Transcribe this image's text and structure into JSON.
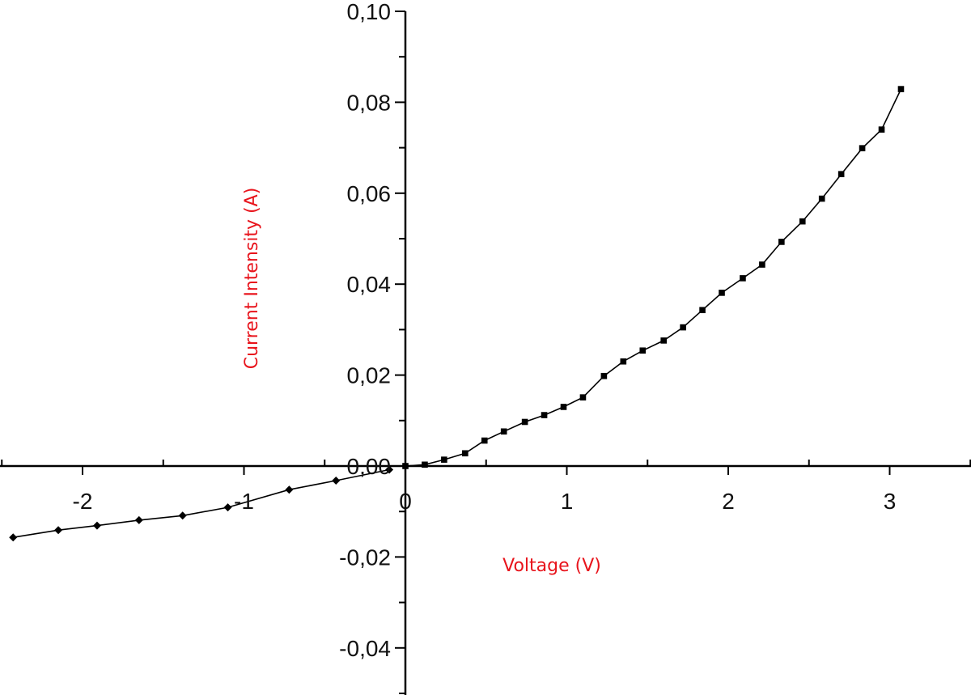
{
  "chart_data": {
    "type": "line",
    "title": "",
    "xlabel": "Voltage (V)",
    "ylabel": "Current Intensity (A)",
    "label_color": "#e8141c",
    "line_color": "#000000",
    "xlim": [
      -2.5,
      3.5
    ],
    "ylim": [
      -0.05,
      0.1
    ],
    "x_ticks": [
      {
        "value": -2,
        "label": "-2"
      },
      {
        "value": -1,
        "label": "-1"
      },
      {
        "value": 0,
        "label": "0"
      },
      {
        "value": 1,
        "label": "1"
      },
      {
        "value": 2,
        "label": "2"
      },
      {
        "value": 3,
        "label": "3"
      }
    ],
    "y_ticks": [
      {
        "value": -0.04,
        "label": "-0,04"
      },
      {
        "value": -0.02,
        "label": "-0,02"
      },
      {
        "value": 0.0,
        "label": "0,00"
      },
      {
        "value": 0.02,
        "label": "0,02"
      },
      {
        "value": 0.04,
        "label": "0,04"
      },
      {
        "value": 0.06,
        "label": "0,06"
      },
      {
        "value": 0.08,
        "label": "0,08"
      },
      {
        "value": 0.1,
        "label": "0,10"
      }
    ],
    "x_minor_step": 0.5,
    "y_minor_step": 0.01,
    "grid": false,
    "series": [
      {
        "marker": "diamond",
        "x": [
          -2.43,
          -2.15,
          -1.91,
          -1.65,
          -1.38,
          -1.1,
          -0.72,
          -0.43,
          -0.1
        ],
        "y": [
          -0.0157,
          -0.0141,
          -0.0131,
          -0.0119,
          -0.0109,
          -0.0091,
          -0.0052,
          -0.0032,
          -0.0008
        ]
      },
      {
        "marker": "square",
        "x": [
          0.0,
          0.12,
          0.24,
          0.37,
          0.49,
          0.61,
          0.74,
          0.86,
          0.98,
          1.1,
          1.23,
          1.35,
          1.47,
          1.6,
          1.72,
          1.84,
          1.96,
          2.09,
          2.21,
          2.33,
          2.46,
          2.58,
          2.7,
          2.83,
          2.95,
          3.07
        ],
        "y": [
          0.0,
          0.0003,
          0.0014,
          0.0028,
          0.0056,
          0.0076,
          0.0097,
          0.0112,
          0.013,
          0.0151,
          0.0198,
          0.023,
          0.0254,
          0.0276,
          0.0305,
          0.0343,
          0.0381,
          0.0413,
          0.0443,
          0.0493,
          0.0538,
          0.0588,
          0.0642,
          0.0699,
          0.074,
          0.0829
        ]
      }
    ]
  }
}
